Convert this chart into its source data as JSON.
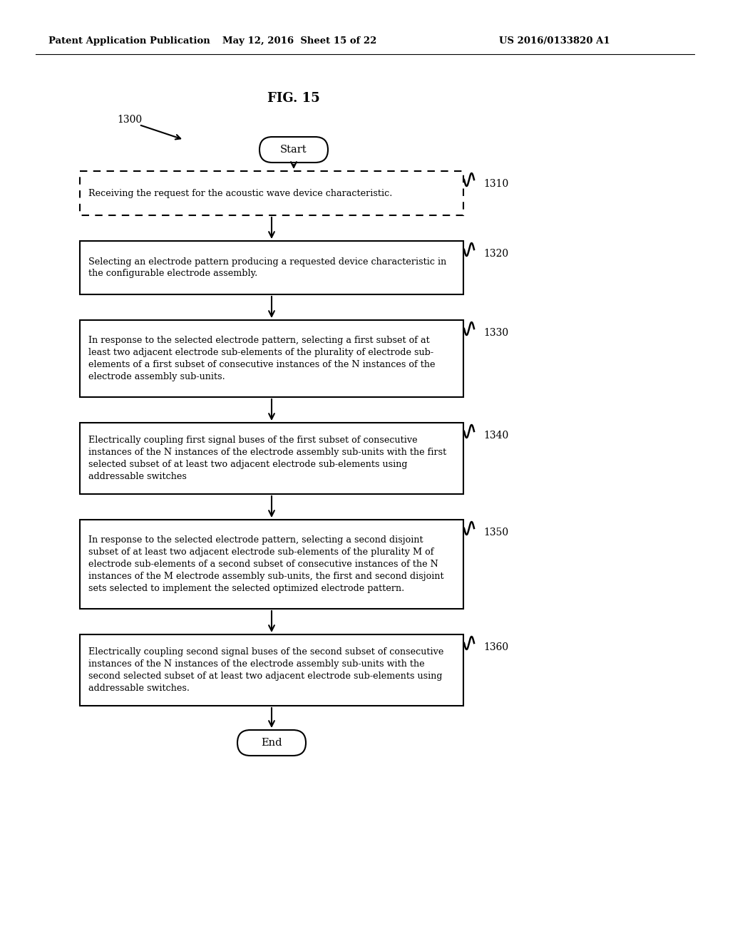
{
  "header_left": "Patent Application Publication",
  "header_mid": "May 12, 2016  Sheet 15 of 22",
  "header_right": "US 2016/0133820 A1",
  "fig_title": "FIG. 15",
  "label_1300": "1300",
  "start_text": "Start",
  "end_text": "End",
  "box_1310_label": "1310",
  "box_1310_text": "Receiving the request for the acoustic wave device characteristic.",
  "box_1320_label": "1320",
  "box_1320_text": "Selecting an electrode pattern producing a requested device characteristic in\nthe configurable electrode assembly.",
  "box_1330_label": "1330",
  "box_1330_text": "In response to the selected electrode pattern, selecting a first subset of at\nleast two adjacent electrode sub-elements of the plurality of electrode sub-\nelements of a first subset of consecutive instances of the N instances of the\nelectrode assembly sub-units.",
  "box_1340_label": "1340",
  "box_1340_text": "Electrically coupling first signal buses of the first subset of consecutive\ninstances of the N instances of the electrode assembly sub-units with the first\nselected subset of at least two adjacent electrode sub-elements using\naddressable switches",
  "box_1350_label": "1350",
  "box_1350_text": "In response to the selected electrode pattern, selecting a second disjoint\nsubset of at least two adjacent electrode sub-elements of the plurality M of\nelectrode sub-elements of a second subset of consecutive instances of the N\ninstances of the M electrode assembly sub-units, the first and second disjoint\nsets selected to implement the selected optimized electrode pattern.",
  "box_1360_label": "1360",
  "box_1360_text": "Electrically coupling second signal buses of the second subset of consecutive\ninstances of the N instances of the electrode assembly sub-units with the\nsecond selected subset of at least two adjacent electrode sub-elements using\naddressable switches.",
  "bg_color": "#ffffff",
  "text_color": "#000000"
}
